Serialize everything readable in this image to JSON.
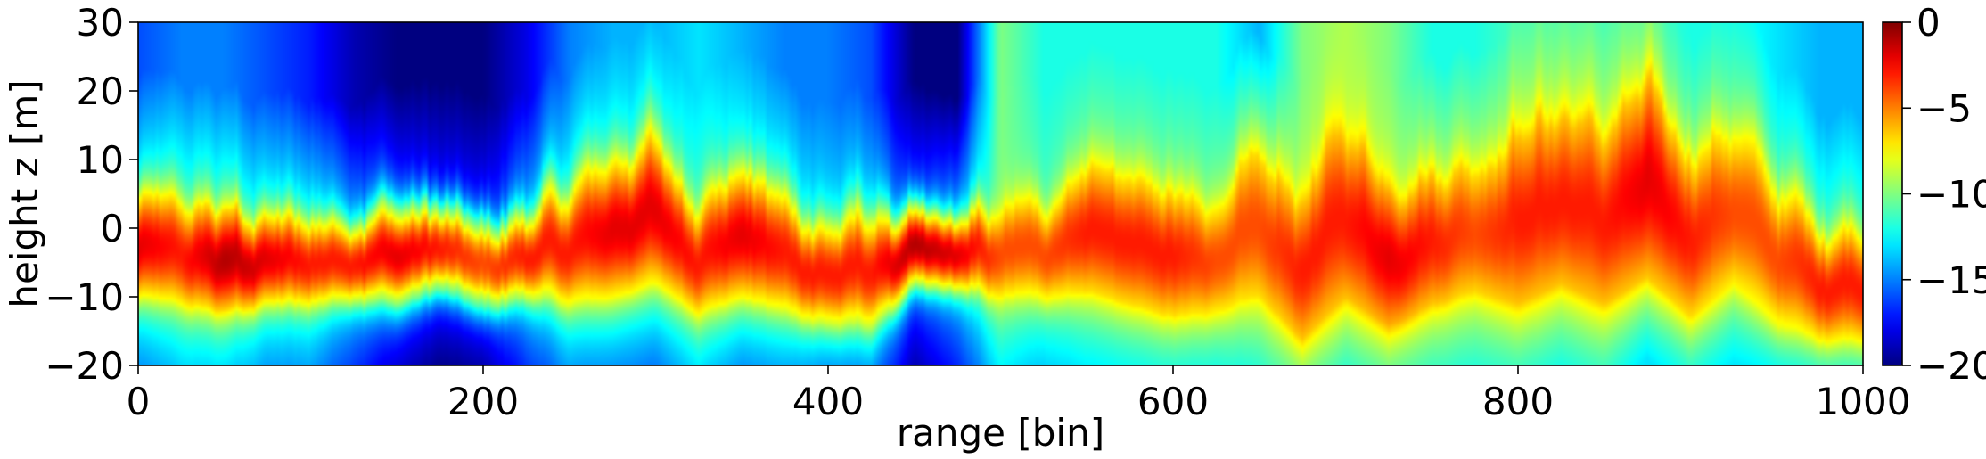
{
  "chart_data": {
    "type": "heatmap",
    "title": "",
    "xlabel": "range [bin]",
    "ylabel": "height z [m]",
    "xlim": [
      0,
      1000
    ],
    "ylim": [
      -20,
      30
    ],
    "x_ticks": [
      0,
      200,
      400,
      600,
      800,
      1000
    ],
    "x_tick_labels": [
      "0",
      "200",
      "400",
      "600",
      "800",
      "1000"
    ],
    "y_ticks": [
      -20,
      -10,
      0,
      10,
      20,
      30
    ],
    "y_tick_labels": [
      "−20",
      "−10",
      "0",
      "10",
      "20",
      "30"
    ],
    "colormap": "jet",
    "colorbar": {
      "range": [
        -20,
        0
      ],
      "ticks": [
        0,
        -5,
        -10,
        -15,
        -20
      ],
      "tick_labels": [
        "0",
        "−5",
        "−10",
        "−15",
        "−20"
      ]
    },
    "grid": false,
    "description_columns": {
      "x": [
        0,
        25,
        50,
        75,
        100,
        125,
        150,
        175,
        200,
        225,
        250,
        275,
        300,
        325,
        350,
        375,
        400,
        425,
        450,
        475,
        500,
        525,
        550,
        575,
        600,
        625,
        650,
        675,
        700,
        725,
        750,
        775,
        800,
        825,
        850,
        875,
        900,
        925,
        950,
        975,
        1000
      ],
      "ridge_height_m": [
        -3,
        -4,
        -5,
        -5,
        -5,
        -4,
        -4,
        -3,
        -6,
        -4,
        -3,
        0,
        2,
        -4,
        -1,
        -4,
        -7,
        -6,
        -4,
        -4,
        -4,
        -3,
        0,
        -2,
        -5,
        -4,
        -1,
        -6,
        2,
        -4,
        -2,
        0,
        1,
        4,
        1,
        6,
        -1,
        3,
        -4,
        -8,
        -8
      ],
      "ridge_peak_db": [
        -2,
        -3,
        -1,
        -2,
        -3,
        -3,
        -2,
        -3,
        -4,
        -3,
        -3,
        -2,
        -2,
        -3,
        -2,
        -3,
        -3,
        -3,
        -1,
        -2,
        -4,
        -4,
        -3,
        -3,
        -3,
        -4,
        -4,
        -3,
        -3,
        -2,
        -3,
        -4,
        -3,
        -3,
        -3,
        -2,
        -3,
        -4,
        -4,
        -3,
        -3
      ],
      "ridge_width_m": [
        7,
        7,
        7,
        6,
        6,
        6,
        7,
        6,
        6,
        6,
        8,
        10,
        10,
        8,
        9,
        8,
        7,
        8,
        5,
        5,
        6,
        7,
        9,
        9,
        8,
        8,
        9,
        10,
        12,
        10,
        9,
        9,
        12,
        12,
        12,
        13,
        12,
        11,
        10,
        8,
        8
      ],
      "background_db": [
        -12,
        -11,
        -11,
        -12,
        -12,
        -14,
        -16,
        -17,
        -17,
        -14,
        -12,
        -12,
        -12,
        -11,
        -12,
        -12,
        -13,
        -13,
        -16,
        -14,
        -10,
        -11,
        -10,
        -10,
        -10,
        -10,
        -9,
        -9,
        -9,
        -9,
        -9,
        -9,
        -9,
        -9,
        -9,
        -10,
        -10,
        -10,
        -11,
        -11,
        -11
      ],
      "top_db": [
        -16,
        -15,
        -15,
        -16,
        -17,
        -19,
        -20,
        -20,
        -20,
        -18,
        -15,
        -14,
        -14,
        -13,
        -14,
        -15,
        -15,
        -16,
        -20,
        -20,
        -10,
        -12,
        -12,
        -12,
        -12,
        -12,
        -14,
        -10,
        -9,
        -10,
        -12,
        -12,
        -11,
        -11,
        -11,
        -11,
        -12,
        -12,
        -13,
        -14,
        -14
      ]
    }
  }
}
